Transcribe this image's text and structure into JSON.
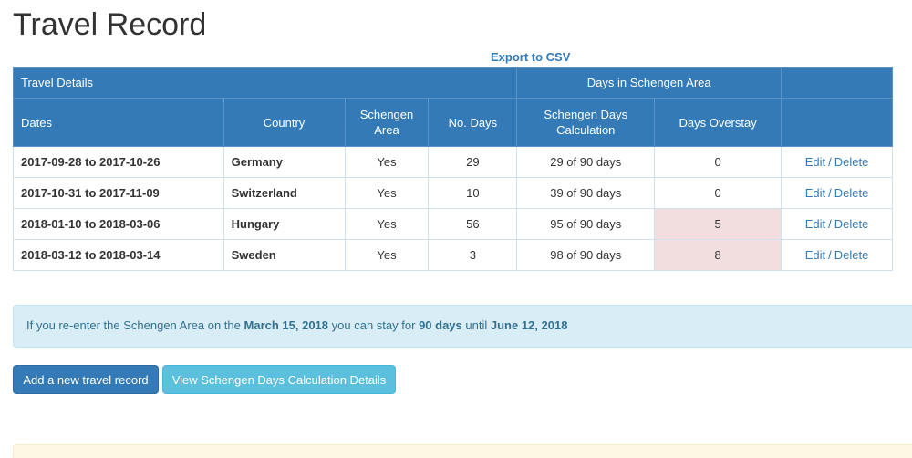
{
  "page": {
    "title": "Travel Record"
  },
  "export": {
    "label": "Export to CSV"
  },
  "table": {
    "group_headers": {
      "travel_details": "Travel Details",
      "days_in_schengen": "Days in Schengen Area"
    },
    "columns": {
      "dates": "Dates",
      "country": "Country",
      "schengen_area": "Schengen Area",
      "no_days": "No. Days",
      "calculation": "Schengen Days Calculation",
      "overstay": "Days Overstay"
    },
    "rows": [
      {
        "dates": "2017-09-28 to 2017-10-26",
        "country": "Germany",
        "schengen": "Yes",
        "days": "29",
        "calc": "29 of 90 days",
        "overstay": "0",
        "edit": "Edit",
        "sep": "/",
        "delete": "Delete"
      },
      {
        "dates": "2017-10-31 to 2017-11-09",
        "country": "Switzerland",
        "schengen": "Yes",
        "days": "10",
        "calc": "39 of 90 days",
        "overstay": "0",
        "edit": "Edit",
        "sep": "/",
        "delete": "Delete"
      },
      {
        "dates": "2018-01-10 to 2018-03-06",
        "country": "Hungary",
        "schengen": "Yes",
        "days": "56",
        "calc": "95 of 90 days",
        "overstay": "5",
        "edit": "Edit",
        "sep": "/",
        "delete": "Delete"
      },
      {
        "dates": "2018-03-12 to 2018-03-14",
        "country": "Sweden",
        "schengen": "Yes",
        "days": "3",
        "calc": "98 of 90 days",
        "overstay": "8",
        "edit": "Edit",
        "sep": "/",
        "delete": "Delete"
      }
    ]
  },
  "alert": {
    "prefix": "If you re-enter the Schengen Area on the",
    "reentry_date": "March 15, 2018",
    "mid": "you can stay for",
    "stay_days": "90 days",
    "until_text": "until",
    "until_date": "June 12, 2018"
  },
  "buttons": {
    "add_record": "Add a new travel record",
    "view_details": "View Schengen Days Calculation Details"
  },
  "colors": {
    "primary": "#337ab7",
    "info": "#5bc0de",
    "overstay_highlight": "#f2dede",
    "alert_bg": "#d9edf7"
  }
}
